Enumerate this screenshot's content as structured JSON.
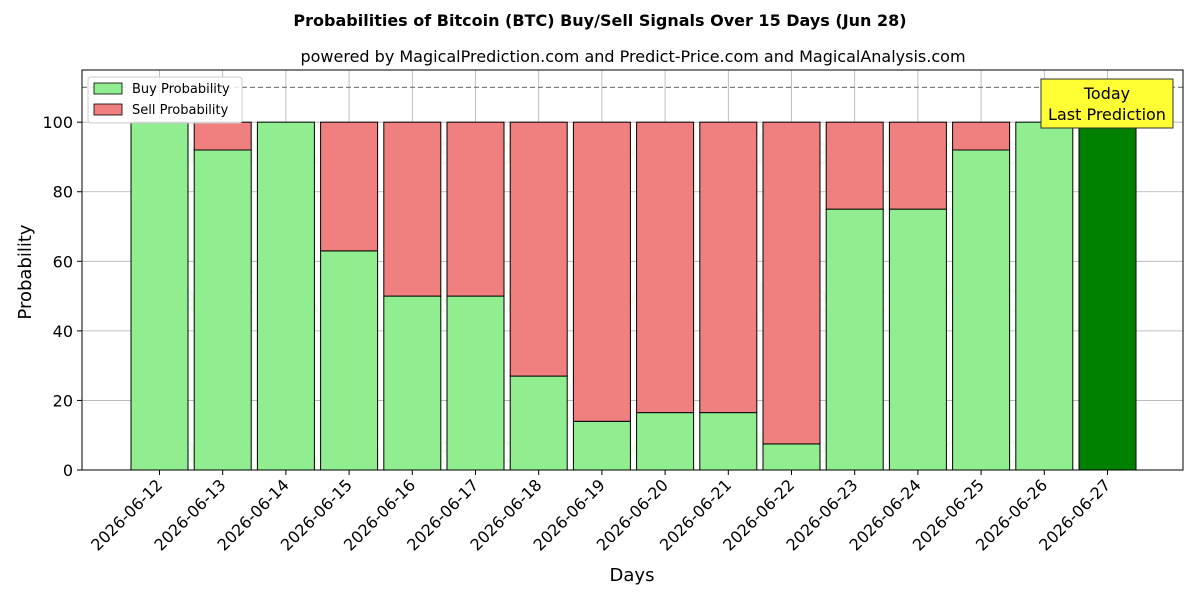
{
  "chart_data": {
    "type": "bar",
    "stacked": true,
    "title": "Probabilities of Bitcoin (BTC) Buy/Sell Signals Over 15 Days (Jun 28)",
    "subtitle": "powered by MagicalPrediction.com and Predict-Price.com and MagicalAnalysis.com",
    "xlabel": "Days",
    "ylabel": "Probability",
    "ylim": [
      0,
      115
    ],
    "yticks": [
      0,
      20,
      40,
      60,
      80,
      100
    ],
    "grid": true,
    "legend_position": "top-left",
    "reference_line": 110,
    "categories": [
      "2026-06-12",
      "2026-06-13",
      "2026-06-14",
      "2026-06-15",
      "2026-06-16",
      "2026-06-17",
      "2026-06-18",
      "2026-06-19",
      "2026-06-20",
      "2026-06-21",
      "2026-06-22",
      "2026-06-23",
      "2026-06-24",
      "2026-06-25",
      "2026-06-26",
      "2026-06-27"
    ],
    "series": [
      {
        "name": "Buy Probability",
        "color": "#90ee90",
        "values": [
          100,
          92,
          100,
          63,
          50,
          50,
          27,
          14,
          16.5,
          16.5,
          7.5,
          75,
          75,
          92,
          100,
          100
        ]
      },
      {
        "name": "Sell Probability",
        "color": "#f08080",
        "values": [
          0,
          8,
          0,
          37,
          50,
          50,
          73,
          86,
          83.5,
          83.5,
          92.5,
          25,
          25,
          8,
          0,
          0
        ]
      }
    ],
    "highlight": {
      "index": 15,
      "color": "#008000"
    },
    "annotation": {
      "lines": [
        "Today",
        "Last Prediction"
      ],
      "bg": "#ffff33"
    },
    "watermarks": [
      "MagicalAnalysis.com",
      "MagicalPrediction.com"
    ]
  }
}
